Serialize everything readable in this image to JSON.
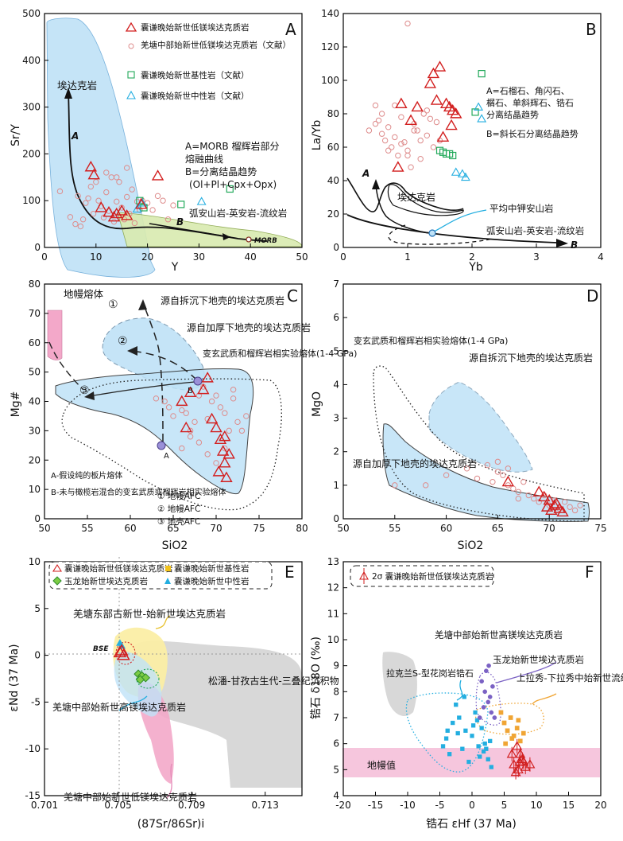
{
  "colors": {
    "red": "#d21f1f",
    "pink_circle": "#de8c8c",
    "green_sq": "#22a95a",
    "cyan_tri": "#23aee0",
    "blue_field": "#bfe2f7",
    "green_field": "#d9ebb0",
    "pink_field": "#f3a8c9",
    "gray_field": "#d8d8d8",
    "yellow_field": "#fbeea5",
    "mantle_band": "#f6c6dd",
    "purple": "#7b62c4",
    "orange": "#f0a534"
  },
  "chart_data": [
    {
      "panel": "A",
      "type": "scatter",
      "xlabel": "Y",
      "ylabel": "Sr/Y",
      "xlim": [
        0,
        50
      ],
      "ylim": [
        0,
        500
      ],
      "xticks": [
        "0",
        "10",
        "20",
        "30",
        "40",
        "50"
      ],
      "yticks": [
        "0",
        "100",
        "200",
        "300",
        "400",
        "500"
      ],
      "legend": [
        {
          "symbol": "red-triangle",
          "label": "囊谦晚始新世低镁埃达克质岩"
        },
        {
          "symbol": "pink-circle",
          "label": "羌塘中部始新世低镁埃达克质岩（文献）"
        },
        {
          "symbol": "green-square",
          "label": "囊谦晚始新世基性岩（文献）"
        },
        {
          "symbol": "cyan-triangle",
          "label": "囊谦晚始新世中性岩（文献）"
        }
      ],
      "annotations": [
        "埃达克岩",
        "A",
        "B",
        "MORB",
        "弧安山岩-英安岩-流纹岩"
      ],
      "notes": [
        "A=MORB 榴辉岩部分",
        "熔融曲线",
        "B=分离结晶趋势",
        "(Ol+Pl+Cpx+Opx)"
      ],
      "series": [
        {
          "name": "囊谦晚始新世低镁埃达克质岩",
          "x": [
            9.0,
            9.6,
            12.5,
            14.0,
            15.0,
            16.0,
            18.8,
            22.0,
            11.0,
            13.5
          ],
          "y": [
            172,
            155,
            75,
            72,
            78,
            68,
            92,
            153,
            85,
            65
          ]
        },
        {
          "name": "羌塘中部始新世低镁埃达克质岩（文献）",
          "x": [
            3,
            5,
            6,
            6.5,
            7,
            7.5,
            8,
            8.5,
            9,
            9.5,
            10,
            10.5,
            11,
            11.5,
            12,
            12.5,
            13,
            13.5,
            14,
            14.5,
            15,
            15.5,
            16,
            16.5,
            17,
            17.5,
            18,
            18.5,
            19,
            20,
            21,
            22,
            23,
            24,
            25,
            12,
            14,
            16
          ],
          "y": [
            120,
            65,
            50,
            110,
            45,
            60,
            95,
            105,
            130,
            72,
            140,
            100,
            88,
            64,
            118,
            78,
            150,
            55,
            98,
            140,
            85,
            60,
            108,
            72,
            124,
            52,
            98,
            80,
            100,
            95,
            80,
            110,
            100,
            60,
            90,
            160,
            150,
            170
          ]
        },
        {
          "name": "囊谦晚始新世基性岩（文献）",
          "x": [
            18.5,
            19.3,
            26.5,
            36.0
          ],
          "y": [
            100,
            85,
            92,
            125
          ]
        },
        {
          "name": "囊谦晚始新世中性岩（文献）",
          "x": [
            19.0,
            18.0,
            30.5
          ],
          "y": [
            95,
            82,
            98
          ]
        }
      ]
    },
    {
      "panel": "B",
      "type": "scatter",
      "xlabel": "Yb",
      "ylabel": "La/Yb",
      "xlim": [
        0,
        4
      ],
      "ylim": [
        0,
        140
      ],
      "xticks": [
        "0",
        "1",
        "2",
        "3",
        "4"
      ],
      "yticks": [
        "0",
        "20",
        "40",
        "60",
        "80",
        "100",
        "120",
        "140"
      ],
      "annotations": [
        "埃达克岩",
        "平均中钾安山岩",
        "弧安山岩-英安岩-流纹岩",
        "A",
        "B"
      ],
      "notes": [
        "A=石榴石、角闪石、",
        "榍石、单斜辉石、锆石",
        "分离结晶趋势",
        "B=斜长石分离结晶趋势"
      ],
      "series": [
        {
          "name": "囊谦晚始新世低镁埃达克质岩",
          "x": [
            0.85,
            1.35,
            1.4,
            1.45,
            1.6,
            1.65,
            1.7,
            1.75,
            1.55,
            1.15,
            1.5,
            1.05,
            0.9,
            1.68
          ],
          "y": [
            48,
            98,
            104,
            88,
            86,
            84,
            82,
            80,
            66,
            84,
            108,
            76,
            86,
            73
          ]
        },
        {
          "name": "羌塘中部始新世低镁埃达克质岩（文献）",
          "x": [
            0.4,
            0.5,
            0.55,
            0.6,
            0.65,
            0.7,
            0.75,
            0.8,
            0.85,
            0.9,
            0.95,
            1.0,
            1.05,
            1.1,
            1.15,
            1.2,
            1.25,
            1.3,
            1.35,
            1.4,
            1.45,
            1.5,
            0.5,
            0.6,
            0.7,
            0.8,
            0.9,
            1.0,
            1.1,
            1.2,
            1.3,
            1.0
          ],
          "y": [
            70,
            85,
            76,
            80,
            64,
            72,
            60,
            66,
            55,
            78,
            63,
            58,
            48,
            74,
            70,
            53,
            80,
            67,
            77,
            60,
            75,
            64,
            74,
            68,
            58,
            85,
            62,
            55,
            70,
            64,
            82,
            134
          ]
        },
        {
          "name": "囊谦晚始新世基性岩（文献）",
          "x": [
            1.5,
            1.55,
            1.6,
            1.65,
            1.7,
            2.05,
            2.15
          ],
          "y": [
            58,
            57,
            56,
            56,
            55,
            81,
            104
          ]
        },
        {
          "name": "囊谦晚始新世中性岩（文献）",
          "x": [
            1.75,
            1.85,
            1.9,
            2.1,
            2.15
          ],
          "y": [
            45,
            44,
            42,
            84,
            77
          ]
        }
      ]
    },
    {
      "panel": "C",
      "type": "scatter",
      "xlabel": "SiO2",
      "ylabel": "Mg#",
      "xlim": [
        50,
        80
      ],
      "ylim": [
        0,
        80
      ],
      "xticks": [
        "50",
        "55",
        "60",
        "65",
        "70",
        "75",
        "80"
      ],
      "yticks": [
        "0",
        "10",
        "20",
        "30",
        "40",
        "50",
        "60",
        "70",
        "80"
      ],
      "annotations": [
        "地幔熔体",
        "源自拆沉下地壳的埃达克质岩",
        "源自加厚下地壳的埃达克质岩",
        "变玄武质和榴辉岩相实验熔体(1-4 GPa)",
        "A",
        "B",
        "①",
        "②",
        "③"
      ],
      "notes": [
        "A-假设纯的板片熔体",
        "B-未与橄榄岩混合的变玄武质或榴辉岩相实验熔体",
        "① 地幔AFC",
        "② 地幔AFC",
        "③ 地壳AFC"
      ],
      "series": [
        {
          "name": "囊谦晚始新世低镁埃达克质岩",
          "x": [
            68.5,
            69.0,
            66.0,
            66.5,
            70.0,
            70.5,
            71.0,
            71.5,
            71.0,
            70.8,
            71.2,
            67.0,
            69.5,
            70.3
          ],
          "y": [
            44,
            48,
            40,
            31,
            31,
            27,
            28,
            22,
            19,
            23,
            14,
            43,
            34,
            16
          ]
        },
        {
          "name": "羌塘中部始新世低镁埃达克质岩（文献）",
          "x": [
            63,
            64,
            64.5,
            65,
            66,
            66.5,
            67,
            67.5,
            68,
            68.5,
            69,
            69.5,
            70,
            70.5,
            71,
            71.5,
            72,
            72.5,
            73,
            73.5,
            68,
            69,
            70,
            71,
            72,
            66,
            67
          ],
          "y": [
            41,
            40,
            38,
            35,
            37,
            36,
            30,
            33,
            42,
            45,
            34,
            40,
            42,
            38,
            36,
            30,
            44,
            33,
            30,
            35,
            26,
            22,
            19,
            24,
            41,
            24,
            28
          ]
        }
      ]
    },
    {
      "panel": "D",
      "type": "scatter",
      "xlabel": "SiO2",
      "ylabel": "MgO",
      "xlim": [
        50,
        75
      ],
      "ylim": [
        0,
        7
      ],
      "xticks": [
        "50",
        "55",
        "60",
        "65",
        "70",
        "75"
      ],
      "yticks": [
        "0",
        "1",
        "2",
        "3",
        "4",
        "5",
        "6",
        "7"
      ],
      "annotations": [
        "变玄武质和榴辉岩相实验熔体(1-4 GPa)",
        "源自拆沉下地壳的埃达克质岩",
        "源自加厚下地壳的埃达克质岩"
      ],
      "series": [
        {
          "name": "囊谦晚始新世低镁埃达克质岩",
          "x": [
            66.0,
            69.0,
            69.5,
            70.0,
            70.5,
            71.0,
            71.3,
            70.2,
            69.8,
            70.7
          ],
          "y": [
            1.1,
            0.8,
            0.65,
            0.55,
            0.4,
            0.3,
            0.2,
            0.25,
            0.35,
            0.45
          ]
        },
        {
          "name": "羌塘中部始新世低镁埃达克质岩（文献）",
          "x": [
            55,
            58,
            60,
            62,
            63,
            64,
            64.5,
            65,
            65.5,
            66,
            66.5,
            67,
            67.5,
            68,
            68.5,
            69,
            69.5,
            70,
            70.5,
            71,
            71.5,
            72,
            72.5,
            73,
            65,
            66,
            67
          ],
          "y": [
            1.0,
            1.0,
            1.3,
            1.5,
            1.2,
            1.6,
            1.1,
            1.4,
            1.3,
            1.0,
            0.9,
            0.8,
            1.1,
            0.7,
            0.6,
            0.5,
            0.7,
            0.4,
            0.55,
            0.3,
            0.5,
            0.35,
            0.25,
            0.4,
            1.7,
            1.5,
            0.6
          ]
        }
      ]
    },
    {
      "panel": "E",
      "type": "scatter",
      "xlabel": "(87Sr/86Sr)i",
      "ylabel": "εNd (37 Ma)",
      "xlim": [
        0.701,
        0.715
      ],
      "ylim": [
        -15,
        10
      ],
      "xticks": [
        "0.701",
        "0.705",
        "0.709",
        "0.713"
      ],
      "yticks": [
        "10",
        "5",
        "0",
        "-5",
        "-10",
        "-15"
      ],
      "legend": [
        {
          "symbol": "red-triangle",
          "label": "囊谦晚始新世低镁埃达克质岩"
        },
        {
          "symbol": "yellow-square",
          "label": "囊谦晚始新世基性岩"
        },
        {
          "symbol": "green-diamond",
          "label": "玉龙始新世埃达克质岩"
        },
        {
          "symbol": "cyan-triangle",
          "label": "囊谦晚始新世中性岩"
        }
      ],
      "annotations": [
        "羌塘东部古新世-始新世埃达克质岩",
        "BSE",
        "松潘-甘孜古生代-三叠纪沉积物",
        "羌塘中部始新世高镁埃达克质岩",
        "羌塘中部始新世低镁埃达克质岩"
      ],
      "series": [
        {
          "name": "囊谦晚始新世低镁埃达克质岩",
          "x": [
            0.7052,
            0.7053,
            0.7051
          ],
          "y": [
            0.5,
            0.0,
            0.3
          ]
        },
        {
          "name": "玉龙始新世埃达克质岩",
          "x": [
            0.7061,
            0.7063,
            0.7065,
            0.7062
          ],
          "y": [
            -2.0,
            -2.2,
            -2.4,
            -2.6
          ]
        },
        {
          "name": "囊谦晚始新世中性岩",
          "x": [
            0.7051,
            0.7052
          ],
          "y": [
            1.3,
            1.0
          ]
        }
      ]
    },
    {
      "panel": "F",
      "type": "scatter",
      "xlabel": "锆石 εHf (37 Ma)",
      "ylabel": "锆石 δ18O (‰)",
      "xlim": [
        -20,
        20
      ],
      "ylim": [
        4,
        13
      ],
      "xticks": [
        "-20",
        "-15",
        "-10",
        "-5",
        "0",
        "5",
        "10",
        "15",
        "20"
      ],
      "yticks": [
        "4",
        "5",
        "6",
        "7",
        "8",
        "9",
        "10",
        "11",
        "12",
        "13"
      ],
      "legend": [
        {
          "symbol": "red-triangle-2sigma",
          "label": "2σ 囊谦晚始新世低镁埃达克质岩"
        }
      ],
      "annotations": [
        "拉克兰S-型花岗岩锆石",
        "羌塘中部始新世高镁埃达克质岩",
        "玉龙始新世埃达克质岩",
        "上拉秀-下拉秀中始新世流纹岩",
        "地幔值"
      ],
      "series": [
        {
          "name": "囊谦晚始新世低镁埃达克质岩",
          "x": [
            7.0,
            7.5,
            8.0,
            6.5,
            7.2,
            8.3,
            6.8,
            7.8,
            6.2,
            9.0,
            7.4
          ],
          "y": [
            5.9,
            5.6,
            5.3,
            5.2,
            5.0,
            5.1,
            4.9,
            5.4,
            5.6,
            5.2,
            5.3
          ]
        },
        {
          "name": "羌塘中部始新世高镁埃达克质岩",
          "x": [
            -4,
            -3,
            -3.5,
            -2,
            -1,
            -1.5,
            0,
            0.5,
            1,
            1.5,
            2,
            2.5,
            3,
            -2.5,
            -0.5,
            0.8,
            1.8,
            2.8,
            -3.8,
            -1.2,
            0.2,
            1.2,
            2.2,
            -4.5,
            -2.2
          ],
          "y": [
            6.2,
            6.8,
            5.6,
            7.0,
            6.5,
            5.8,
            6.3,
            7.2,
            5.9,
            6.6,
            6.0,
            5.4,
            5.1,
            7.5,
            5.3,
            6.9,
            5.7,
            6.1,
            6.5,
            7.8,
            6.7,
            5.5,
            5.8,
            5.9,
            6.4
          ]
        },
        {
          "name": "玉龙始新世埃达克质岩",
          "x": [
            1.5,
            2.0,
            2.5,
            3.0,
            3.5,
            2.2,
            1.8,
            2.8,
            3.2,
            1.2,
            2.6
          ],
          "y": [
            8.4,
            8.0,
            7.6,
            7.2,
            7.0,
            8.8,
            7.4,
            7.8,
            8.2,
            7.0,
            9.0
          ]
        },
        {
          "name": "上拉秀-下拉秀中始新世流纹岩",
          "x": [
            4.5,
            5.0,
            5.5,
            6.0,
            6.5,
            7.0,
            7.5,
            8.0,
            5.2,
            6.2,
            7.2
          ],
          "y": [
            7.2,
            6.8,
            6.5,
            7.0,
            6.3,
            6.6,
            6.1,
            6.4,
            6.0,
            6.2,
            6.9
          ]
        }
      ]
    }
  ]
}
